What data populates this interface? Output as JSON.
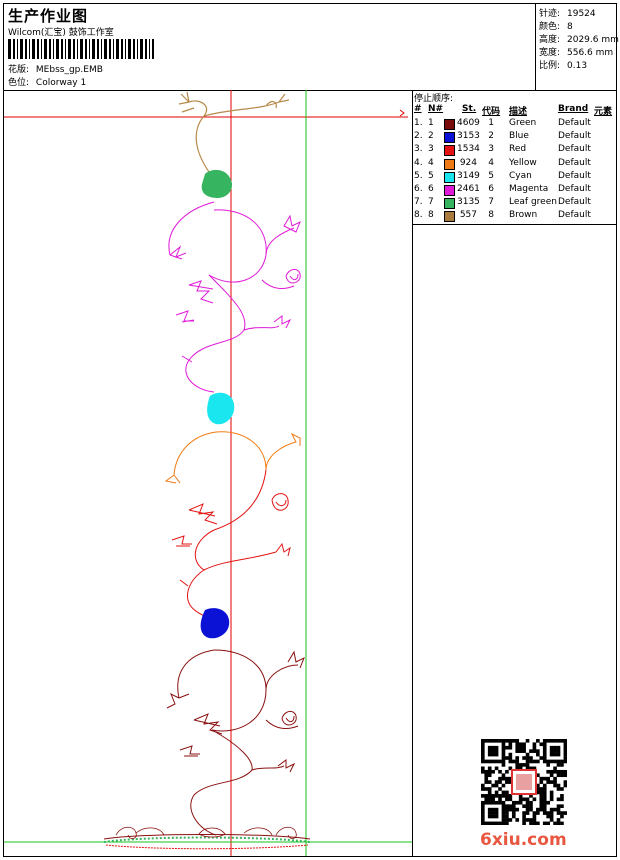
{
  "header": {
    "title": "生产作业图",
    "company": "Wilcom(汇宝) 鼓饰工作室",
    "pattern_label": "花版:",
    "pattern_value": "MEbss_gp.EMB",
    "colorway_label": "色位:",
    "colorway_value": "Colorway 1"
  },
  "stats": [
    {
      "label": "针迹:",
      "value": "19524"
    },
    {
      "label": "颜色:",
      "value": "8"
    },
    {
      "label": "高度:",
      "value": "2029.6 mm"
    },
    {
      "label": "宽度:",
      "value": "556.6 mm"
    },
    {
      "label": "比例:",
      "value": "0.13"
    }
  ],
  "stop_sequence": {
    "title": "停止顺序:",
    "columns": {
      "stop": "#",
      "no": "N#",
      "stitches": "St.",
      "code": "代码",
      "description": "描述",
      "brand": "Brand",
      "element": "元素"
    },
    "rows": [
      {
        "stop": "1.",
        "no": "1",
        "color": "#7a0b0b",
        "stitches": "4609",
        "code": "1",
        "description": "Green",
        "brand": "Default"
      },
      {
        "stop": "2.",
        "no": "2",
        "color": "#0b12d6",
        "stitches": "3153",
        "code": "2",
        "description": "Blue",
        "brand": "Default"
      },
      {
        "stop": "3.",
        "no": "3",
        "color": "#e31313",
        "stitches": "1534",
        "code": "3",
        "description": "Red",
        "brand": "Default"
      },
      {
        "stop": "4.",
        "no": "4",
        "color": "#f07a14",
        "stitches": "924",
        "code": "4",
        "description": "Yellow",
        "brand": "Default"
      },
      {
        "stop": "5.",
        "no": "5",
        "color": "#19e6ee",
        "stitches": "3149",
        "code": "5",
        "description": "Cyan",
        "brand": "Default"
      },
      {
        "stop": "6.",
        "no": "6",
        "color": "#e01ad8",
        "stitches": "2461",
        "code": "6",
        "description": "Magenta",
        "brand": "Default"
      },
      {
        "stop": "7.",
        "no": "7",
        "color": "#37b45f",
        "stitches": "3135",
        "code": "7",
        "description": "Leaf green",
        "brand": "Default"
      },
      {
        "stop": "8.",
        "no": "8",
        "color": "#a97a3d",
        "stitches": "557",
        "code": "8",
        "description": "Brown",
        "brand": "Default"
      }
    ]
  },
  "watermark": "6xiu.com",
  "colors": {
    "guide_red": "#e00000",
    "guide_green": "#18c418",
    "brown": "#b88a4a",
    "leaf_green": "#37b45f",
    "magenta": "#e01ad8",
    "cyan": "#19e6ee",
    "orange": "#f07a14",
    "red": "#e31313",
    "blue": "#0b12d6",
    "dark_red": "#8a1010"
  }
}
